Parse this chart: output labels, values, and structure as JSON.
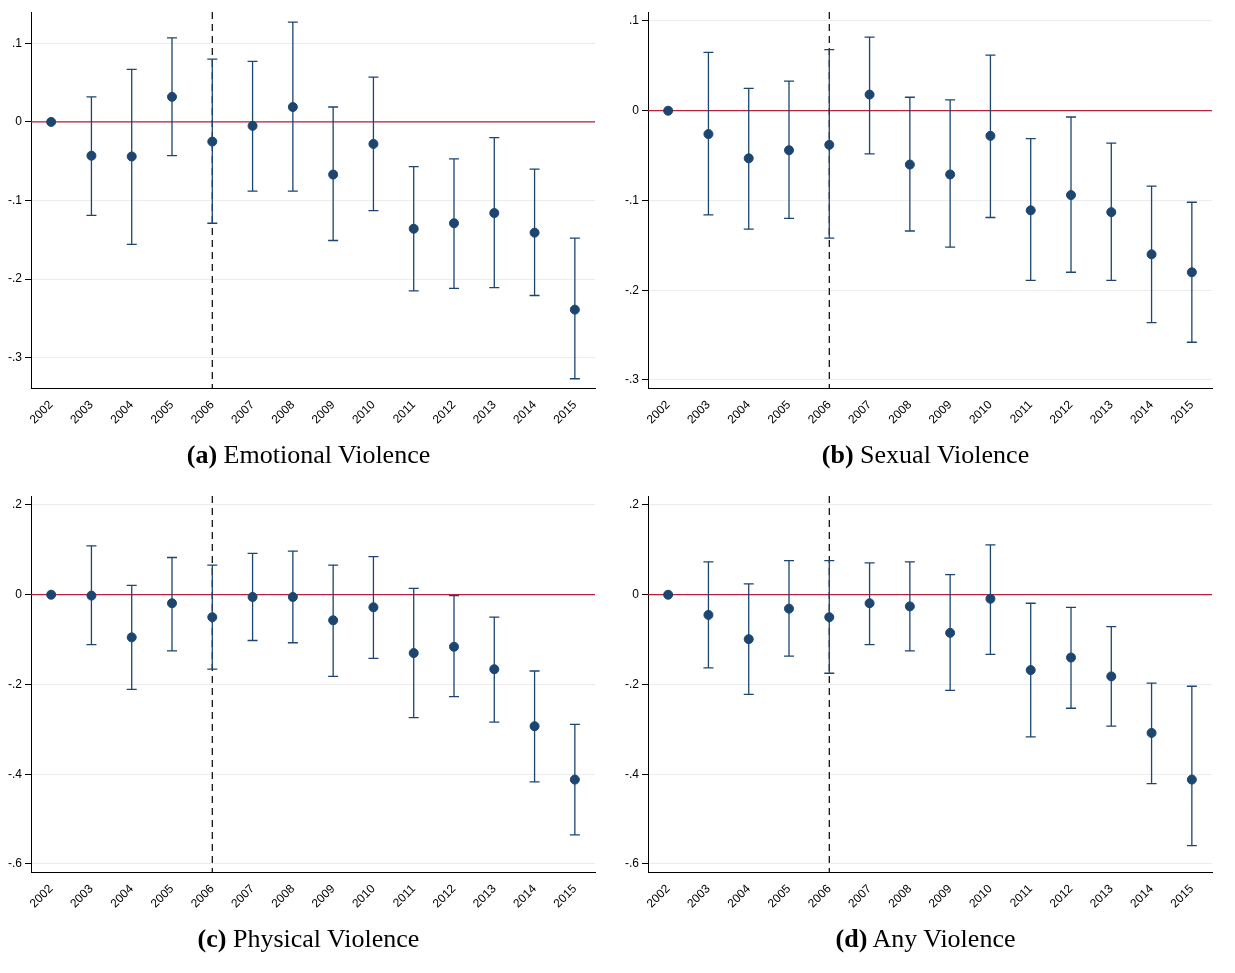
{
  "chart_data": [
    {
      "type": "scatter",
      "title": "(a) Emotional Violence",
      "categories": [
        "2002",
        "2003",
        "2004",
        "2005",
        "2006",
        "2007",
        "2008",
        "2009",
        "2010",
        "2011",
        "2012",
        "2013",
        "2014",
        "2015"
      ],
      "series": [
        {
          "color": "#1c4670",
          "values": [
            0,
            -0.043,
            -0.044,
            0.032,
            -0.025,
            -0.005,
            0.019,
            -0.067,
            -0.028,
            -0.136,
            -0.129,
            -0.116,
            -0.141,
            -0.239
          ],
          "errors": [
            null,
            [
              -0.119,
              0.032
            ],
            [
              -0.156,
              0.067
            ],
            [
              -0.043,
              0.107
            ],
            [
              -0.129,
              0.08
            ],
            [
              -0.088,
              0.077
            ],
            [
              -0.088,
              0.127
            ],
            [
              -0.151,
              0.019
            ],
            [
              -0.113,
              0.057
            ],
            [
              -0.215,
              -0.057
            ],
            [
              -0.212,
              -0.047
            ],
            [
              -0.211,
              -0.02
            ],
            [
              -0.221,
              -0.06
            ],
            [
              -0.327,
              -0.148
            ]
          ]
        }
      ],
      "ylim": [
        -0.34,
        0.14
      ],
      "yticks": [
        {
          "value": -0.3,
          "label": "-.3"
        },
        {
          "value": -0.2,
          "label": "-.2"
        },
        {
          "value": -0.1,
          "label": "-.1"
        },
        {
          "value": 0,
          "label": "0"
        },
        {
          "value": 0.1,
          "label": ".1"
        }
      ],
      "grid": "y",
      "marker": "circle",
      "ref_lines": [
        {
          "axis": "y",
          "value": 0,
          "color": "#b5203f",
          "line_style": "solid"
        },
        {
          "axis": "x",
          "value": "2006",
          "color": "#000000",
          "line_style": "dashed"
        }
      ]
    },
    {
      "type": "scatter",
      "title": "(b) Sexual Violence",
      "categories": [
        "2002",
        "2003",
        "2004",
        "2005",
        "2006",
        "2007",
        "2008",
        "2009",
        "2010",
        "2011",
        "2012",
        "2013",
        "2014",
        "2015"
      ],
      "series": [
        {
          "color": "#1c4670",
          "values": [
            0,
            -0.026,
            -0.053,
            -0.044,
            -0.038,
            0.018,
            -0.06,
            -0.071,
            -0.028,
            -0.111,
            -0.094,
            -0.113,
            -0.16,
            -0.18
          ],
          "errors": [
            null,
            [
              -0.116,
              0.065
            ],
            [
              -0.132,
              0.025
            ],
            [
              -0.12,
              0.033
            ],
            [
              -0.142,
              0.068
            ],
            [
              -0.048,
              0.082
            ],
            [
              -0.134,
              0.015
            ],
            [
              -0.152,
              0.012
            ],
            [
              -0.119,
              0.062
            ],
            [
              -0.189,
              -0.031
            ],
            [
              -0.18,
              -0.007
            ],
            [
              -0.189,
              -0.036
            ],
            [
              -0.236,
              -0.084
            ],
            [
              -0.258,
              -0.102
            ]
          ]
        }
      ],
      "ylim": [
        -0.31,
        0.11
      ],
      "yticks": [
        {
          "value": -0.3,
          "label": "-.3"
        },
        {
          "value": -0.2,
          "label": "-.2"
        },
        {
          "value": -0.1,
          "label": "-.1"
        },
        {
          "value": 0,
          "label": "0"
        },
        {
          "value": 0.1,
          "label": ".1"
        }
      ],
      "grid": "y",
      "marker": "circle",
      "ref_lines": [
        {
          "axis": "y",
          "value": 0,
          "color": "#b5203f",
          "line_style": "solid"
        },
        {
          "axis": "x",
          "value": "2006",
          "color": "#000000",
          "line_style": "dashed"
        }
      ]
    },
    {
      "type": "scatter",
      "title": "(c) Physical Violence",
      "categories": [
        "2002",
        "2003",
        "2004",
        "2005",
        "2006",
        "2007",
        "2008",
        "2009",
        "2010",
        "2011",
        "2012",
        "2013",
        "2014",
        "2015"
      ],
      "series": [
        {
          "color": "#1c4670",
          "values": [
            0,
            -0.002,
            -0.095,
            -0.019,
            -0.05,
            -0.005,
            -0.005,
            -0.057,
            -0.028,
            -0.13,
            -0.116,
            -0.166,
            -0.293,
            -0.412
          ],
          "errors": [
            null,
            [
              -0.111,
              0.109
            ],
            [
              -0.211,
              0.021
            ],
            [
              -0.125,
              0.083
            ],
            [
              -0.166,
              0.066
            ],
            [
              -0.102,
              0.092
            ],
            [
              -0.107,
              0.097
            ],
            [
              -0.182,
              0.066
            ],
            [
              -0.142,
              0.085
            ],
            [
              -0.274,
              0.014
            ],
            [
              -0.227,
              -0.002
            ],
            [
              -0.284,
              -0.05
            ],
            [
              -0.417,
              -0.17
            ],
            [
              -0.535,
              -0.289
            ]
          ]
        }
      ],
      "ylim": [
        -0.62,
        0.22
      ],
      "yticks": [
        {
          "value": -0.6,
          "label": "-.6"
        },
        {
          "value": -0.4,
          "label": "-.4"
        },
        {
          "value": -0.2,
          "label": "-.2"
        },
        0,
        {
          "value": 0.2,
          "label": ".2"
        }
      ],
      "grid": "y",
      "marker": "circle",
      "ref_lines": [
        {
          "axis": "y",
          "value": 0,
          "color": "#b5203f",
          "line_style": "solid"
        },
        {
          "axis": "x",
          "value": "2006",
          "color": "#000000",
          "line_style": "dashed"
        }
      ]
    },
    {
      "type": "scatter",
      "title": "(d) Any Violence",
      "categories": [
        "2002",
        "2003",
        "2004",
        "2005",
        "2006",
        "2007",
        "2008",
        "2009",
        "2010",
        "2011",
        "2012",
        "2013",
        "2014",
        "2015"
      ],
      "series": [
        {
          "color": "#1c4670",
          "values": [
            0,
            -0.045,
            -0.099,
            -0.031,
            -0.05,
            -0.019,
            -0.026,
            -0.085,
            -0.009,
            -0.168,
            -0.14,
            -0.182,
            -0.308,
            -0.412
          ],
          "errors": [
            null,
            [
              -0.163,
              0.073
            ],
            [
              -0.222,
              0.024
            ],
            [
              -0.137,
              0.076
            ],
            [
              -0.175,
              0.076
            ],
            [
              -0.111,
              0.071
            ],
            [
              -0.125,
              0.073
            ],
            [
              -0.213,
              0.045
            ],
            [
              -0.133,
              0.111
            ],
            [
              -0.317,
              -0.019
            ],
            [
              -0.253,
              -0.028
            ],
            [
              -0.293,
              -0.071
            ],
            [
              -0.421,
              -0.197
            ],
            [
              -0.559,
              -0.204
            ]
          ]
        }
      ],
      "ylim": [
        -0.62,
        0.22
      ],
      "yticks": [
        {
          "value": -0.6,
          "label": "-.6"
        },
        {
          "value": -0.4,
          "label": "-.4"
        },
        {
          "value": -0.2,
          "label": "-.2"
        },
        0,
        {
          "value": 0.2,
          "label": ".2"
        }
      ],
      "grid": "y",
      "marker": "circle",
      "ref_lines": [
        {
          "axis": "y",
          "value": 0,
          "color": "#b5203f",
          "line_style": "solid"
        },
        {
          "axis": "x",
          "value": "2006",
          "color": "#000000",
          "line_style": "dashed"
        }
      ]
    }
  ]
}
